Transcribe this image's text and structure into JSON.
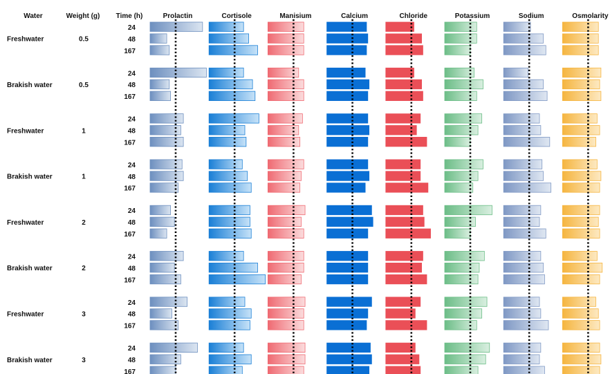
{
  "chart_data": {
    "type": "bar",
    "headers": {
      "water": "Water",
      "weight": "Weight (g)",
      "time": "Time (h)"
    },
    "measures": [
      {
        "name": "Prolactin",
        "color_dark": "#6d8fbf",
        "color_light": "#dbe5f1",
        "reference": 1.0
      },
      {
        "name": "Cortisole",
        "color_dark": "#1a7fd6",
        "color_light": "#c6e2f8",
        "reference": 1.0
      },
      {
        "name": "Manisium",
        "color_dark": "#ef6a72",
        "color_light": "#fbdcdd",
        "reference": 1.0
      },
      {
        "name": "Calcium",
        "color_dark": "#0a6fd4",
        "color_light": "#0a6fd4",
        "reference": 1.0
      },
      {
        "name": "Chloride",
        "color_dark": "#ea4f57",
        "color_light": "#ea4f57",
        "reference": 1.0
      },
      {
        "name": "Potassium",
        "color_dark": "#6cbd87",
        "color_light": "#d9efe0",
        "reference": 1.0
      },
      {
        "name": "Sodium",
        "color_dark": "#7f98c4",
        "color_light": "#dfe7f2",
        "reference": 1.0
      },
      {
        "name": "Osmolarity",
        "color_dark": "#f5b540",
        "color_light": "#fde9c2",
        "reference": 1.0
      }
    ],
    "groups": [
      {
        "water": "Freshwater",
        "weight": "0.5",
        "times": [
          "24",
          "48",
          "167"
        ],
        "values": [
          [
            2.05,
            0.65,
            0.75
          ],
          [
            1.35,
            1.55,
            1.9
          ],
          [
            1.4,
            1.4,
            1.4
          ],
          [
            1.55,
            1.6,
            1.55
          ],
          [
            1.1,
            1.4,
            1.45
          ],
          [
            1.25,
            1.25,
            1.0
          ],
          [
            1.05,
            1.55,
            1.65
          ],
          [
            1.4,
            1.4,
            1.4
          ]
        ]
      },
      {
        "water": "Brakish water",
        "weight": "0.5",
        "times": [
          "24",
          "48",
          "167"
        ],
        "values": [
          [
            2.2,
            0.75,
            0.8
          ],
          [
            1.35,
            1.7,
            1.8
          ],
          [
            1.2,
            1.4,
            1.4
          ],
          [
            1.5,
            1.65,
            1.6
          ],
          [
            1.1,
            1.4,
            1.45
          ],
          [
            1.15,
            1.5,
            1.25
          ],
          [
            0.95,
            1.55,
            1.7
          ],
          [
            1.5,
            1.45,
            1.5
          ]
        ]
      },
      {
        "water": "Freshwater",
        "weight": "1",
        "times": [
          "24",
          "48",
          "167"
        ],
        "values": [
          [
            1.3,
            1.2,
            1.3
          ],
          [
            1.95,
            1.4,
            1.45
          ],
          [
            1.35,
            1.2,
            1.25
          ],
          [
            1.6,
            1.65,
            1.6
          ],
          [
            1.35,
            1.2,
            1.6
          ],
          [
            1.45,
            1.3,
            1.0
          ],
          [
            1.4,
            1.45,
            1.8
          ],
          [
            1.35,
            1.45,
            1.3
          ]
        ]
      },
      {
        "water": "Brakish water",
        "weight": "1",
        "times": [
          "24",
          "48",
          "167"
        ],
        "values": [
          [
            1.25,
            1.3,
            1.1
          ],
          [
            1.3,
            1.5,
            1.65
          ],
          [
            1.4,
            1.3,
            1.25
          ],
          [
            1.6,
            1.65,
            1.5
          ],
          [
            1.35,
            1.35,
            1.65
          ],
          [
            1.5,
            1.3,
            1.1
          ],
          [
            1.5,
            1.55,
            1.85
          ],
          [
            1.35,
            1.5,
            1.45
          ]
        ]
      },
      {
        "water": "Freshwater",
        "weight": "2",
        "times": [
          "24",
          "48",
          "167"
        ],
        "values": [
          [
            0.8,
            0.95,
            0.65
          ],
          [
            1.6,
            1.6,
            1.65
          ],
          [
            1.45,
            1.3,
            1.4
          ],
          [
            1.75,
            1.8,
            1.6
          ],
          [
            1.45,
            1.5,
            1.75
          ],
          [
            1.85,
            1.2,
            1.0
          ],
          [
            1.45,
            1.4,
            1.65
          ],
          [
            1.45,
            1.4,
            1.45
          ]
        ]
      },
      {
        "water": "Brakish water",
        "weight": "2",
        "times": [
          "24",
          "48",
          "167"
        ],
        "values": [
          [
            1.3,
            0.95,
            1.2
          ],
          [
            1.35,
            1.9,
            2.2
          ],
          [
            1.4,
            1.4,
            1.3
          ],
          [
            1.6,
            1.6,
            1.6
          ],
          [
            1.45,
            1.4,
            1.6
          ],
          [
            1.55,
            1.35,
            1.3
          ],
          [
            1.45,
            1.55,
            1.6
          ],
          [
            1.35,
            1.55,
            1.45
          ]
        ]
      },
      {
        "water": "Freshwater",
        "weight": "3",
        "times": [
          "24",
          "48",
          "167"
        ],
        "values": [
          [
            1.45,
            0.85,
            1.1
          ],
          [
            1.4,
            1.65,
            1.6
          ],
          [
            1.45,
            1.4,
            1.4
          ],
          [
            1.75,
            1.6,
            1.55
          ],
          [
            1.35,
            1.15,
            1.6
          ],
          [
            1.65,
            1.45,
            1.25
          ],
          [
            1.4,
            1.45,
            1.75
          ],
          [
            1.3,
            1.4,
            1.45
          ]
        ]
      },
      {
        "water": "Brakish water",
        "weight": "3",
        "times": [
          "24",
          "48",
          "167"
        ],
        "values": [
          [
            1.85,
            1.2,
            1.0
          ],
          [
            1.35,
            1.65,
            1.3
          ],
          [
            1.45,
            1.45,
            1.4
          ],
          [
            1.7,
            1.75,
            1.65
          ],
          [
            1.15,
            1.3,
            1.35
          ],
          [
            1.75,
            1.6,
            1.3
          ],
          [
            1.45,
            1.4,
            1.6
          ],
          [
            1.45,
            1.5,
            1.45
          ]
        ]
      }
    ]
  }
}
